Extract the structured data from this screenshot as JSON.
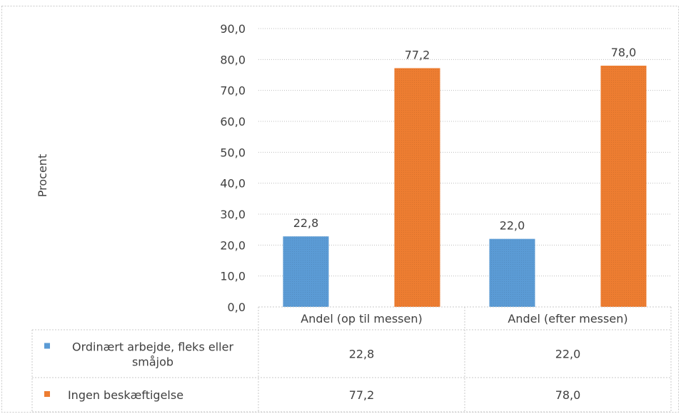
{
  "chart_data": {
    "type": "bar",
    "categories": [
      "Andel (op til messen)",
      "Andel (efter messen)"
    ],
    "series": [
      {
        "name": "Ordinært arbejde, fleks eller småjob",
        "values": [
          22.8,
          22.0
        ],
        "labels": [
          "22,8",
          "22,0"
        ],
        "color": "#5b9bd5"
      },
      {
        "name": "Ingen beskæftigelse",
        "values": [
          77.2,
          78.0
        ],
        "labels": [
          "77,2",
          "78,0"
        ],
        "color": "#ed7d31"
      }
    ],
    "ylabel": "Procent",
    "ylim": [
      0,
      90
    ],
    "yticks": [
      0,
      10,
      20,
      30,
      40,
      50,
      60,
      70,
      80,
      90
    ],
    "ytick_labels": [
      "0,0",
      "10,0",
      "20,0",
      "30,0",
      "40,0",
      "50,0",
      "60,0",
      "70,0",
      "80,0",
      "90,0"
    ],
    "series_name_lines": [
      [
        "Ordinært arbejde, fleks eller",
        "småjob"
      ],
      [
        "Ingen beskæftigelse"
      ]
    ],
    "grid": true,
    "legend": "data-table"
  }
}
